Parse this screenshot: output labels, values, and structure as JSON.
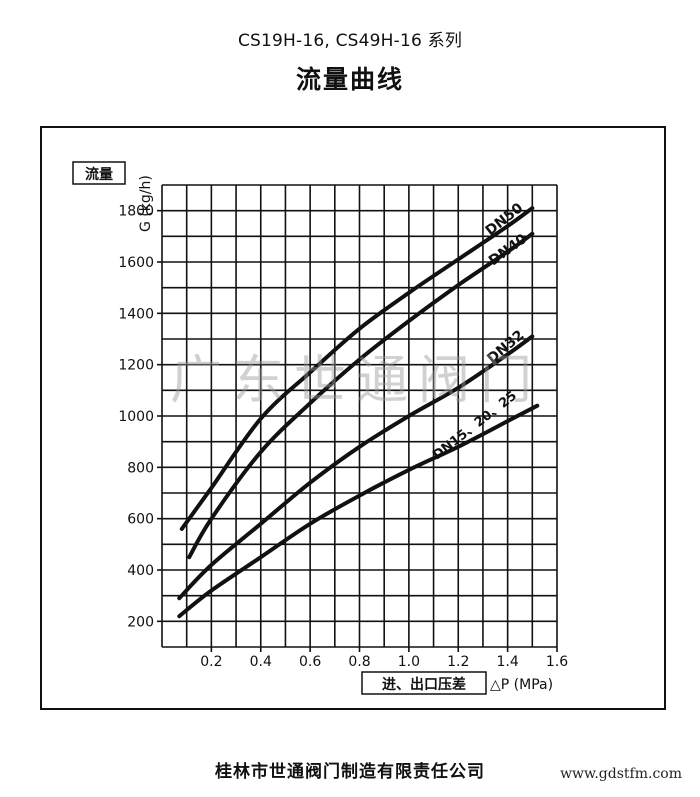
{
  "header": {
    "series_line": "CS19H-16, CS49H-16  系列",
    "title": "流量曲线"
  },
  "footer": {
    "company": "桂林市世通阀门制造有限责任公司",
    "website": "www.gdstfm.com"
  },
  "watermark": "广东世通阀门",
  "colors": {
    "ink": "#111111",
    "grid": "#111111",
    "watermark": "#9a9a9a",
    "background": "#ffffff"
  },
  "chart_data": {
    "type": "line",
    "ylabel_box": "流量",
    "ylabel": "G (kg/h)",
    "xlabel_box": "进、出口压差",
    "xlabel": "△P (MPa)",
    "xlim": [
      0,
      1.6
    ],
    "ylim": [
      100,
      1900
    ],
    "x_ticks": [
      0.2,
      0.4,
      0.6,
      0.8,
      1.0,
      1.2,
      1.4,
      1.6
    ],
    "x_tick_labels": [
      "0.2",
      "0.4",
      "0.6",
      "0.8",
      "1.0",
      "1.2",
      "1.4",
      "1.6"
    ],
    "y_ticks": [
      200,
      400,
      600,
      800,
      1000,
      1200,
      1400,
      1600,
      1800
    ],
    "y_tick_labels": [
      "200",
      "400",
      "600",
      "800",
      "1000",
      "1200",
      "1400",
      "1600",
      "1800"
    ],
    "grid": true,
    "series": [
      {
        "name": "DN50",
        "x": [
          0.08,
          0.2,
          0.4,
          0.6,
          0.8,
          1.0,
          1.2,
          1.4,
          1.5
        ],
        "y": [
          560,
          720,
          990,
          1170,
          1340,
          1480,
          1610,
          1740,
          1810
        ]
      },
      {
        "name": "DN40",
        "x": [
          0.11,
          0.2,
          0.4,
          0.6,
          0.8,
          1.0,
          1.2,
          1.4,
          1.5
        ],
        "y": [
          450,
          600,
          860,
          1050,
          1220,
          1370,
          1510,
          1640,
          1710
        ]
      },
      {
        "name": "DN32",
        "x": [
          0.07,
          0.2,
          0.4,
          0.6,
          0.8,
          1.0,
          1.2,
          1.4,
          1.5
        ],
        "y": [
          290,
          420,
          580,
          740,
          880,
          1000,
          1110,
          1240,
          1310
        ]
      },
      {
        "name": "DN15、20、25",
        "x": [
          0.07,
          0.2,
          0.4,
          0.6,
          0.8,
          1.0,
          1.2,
          1.4,
          1.52
        ],
        "y": [
          220,
          320,
          450,
          580,
          690,
          790,
          880,
          980,
          1040
        ]
      }
    ]
  }
}
